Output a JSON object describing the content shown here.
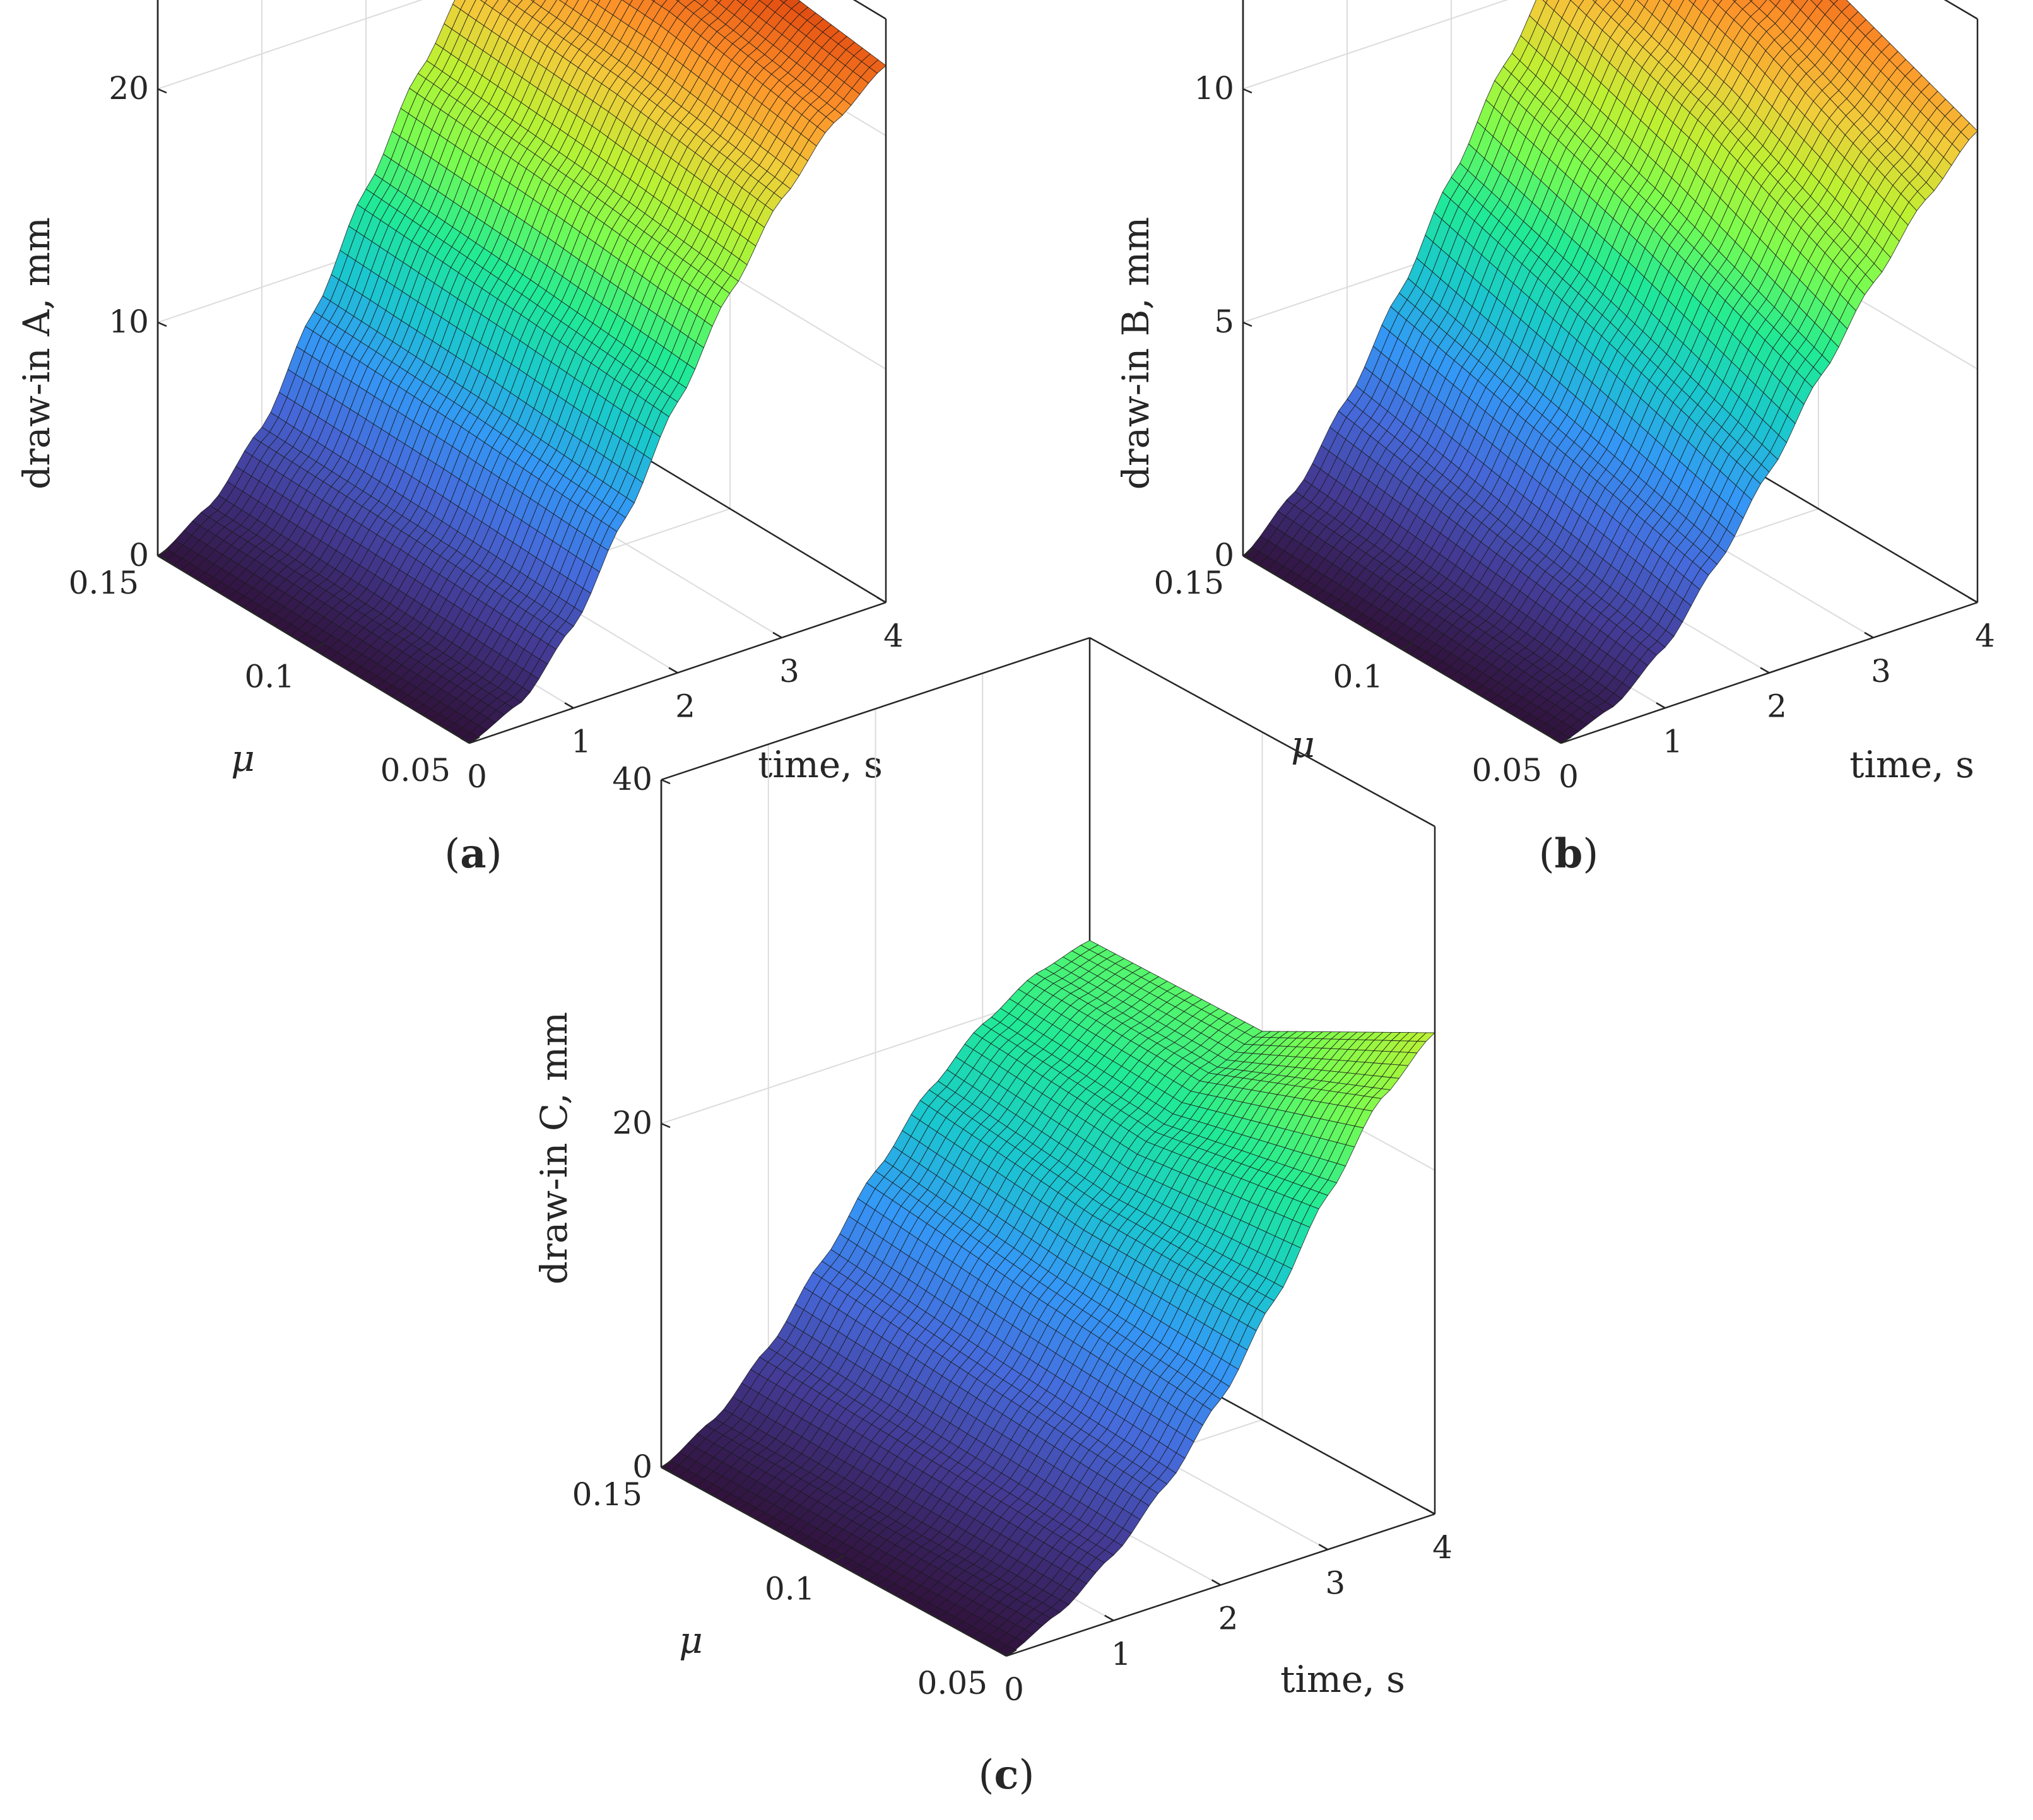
{
  "panels": [
    {
      "panel_label": "a",
      "zlabel": "draw-in A, mm",
      "xlabel": "time, s",
      "ylabel": "μ",
      "zticks": [
        "0",
        "10",
        "20"
      ],
      "xticks": [
        "0",
        "1",
        "2",
        "3",
        "4"
      ],
      "yticks": [
        "0.05",
        "0.1",
        "0.15"
      ]
    },
    {
      "panel_label": "b",
      "zlabel": "draw-in B, mm",
      "xlabel": "time, s",
      "ylabel": "μ",
      "zticks": [
        "0",
        "5",
        "10"
      ],
      "xticks": [
        "0",
        "1",
        "2",
        "3",
        "4"
      ],
      "yticks": [
        "0.05",
        "0.1",
        "0.15"
      ]
    },
    {
      "panel_label": "c",
      "zlabel": "draw-in C, mm",
      "xlabel": "time, s",
      "ylabel": "μ",
      "zticks": [
        "0",
        "20",
        "40"
      ],
      "xticks": [
        "0",
        "1",
        "2",
        "3",
        "4"
      ],
      "yticks": [
        "0.05",
        "0.1",
        "0.15"
      ]
    }
  ],
  "chart_data": [
    {
      "type": "surface",
      "xlabel": "time, s",
      "ylabel": "μ",
      "zlabel": "draw-in A, mm",
      "xlim": [
        0,
        4
      ],
      "ylim": [
        0.05,
        0.15
      ],
      "zlim": [
        0,
        25
      ],
      "grid": true,
      "colormap": "turbo",
      "x": [
        0,
        0.5,
        1,
        1.5,
        2,
        2.5,
        3,
        3.5,
        4
      ],
      "z_at_mu_0.05": [
        0,
        1.0,
        3.5,
        7.4,
        11.6,
        15.5,
        18.8,
        21.3,
        23.0
      ],
      "z_at_mu_0.10": [
        0,
        1.2,
        3.8,
        7.9,
        12.2,
        16.3,
        19.8,
        22.5,
        24.0
      ],
      "z_at_mu_0.15": [
        0,
        1.4,
        4.0,
        8.2,
        12.7,
        16.9,
        20.4,
        22.9,
        24.3
      ]
    },
    {
      "type": "surface",
      "xlabel": "time, s",
      "ylabel": "μ",
      "zlabel": "draw-in B, mm",
      "xlim": [
        0,
        4
      ],
      "ylim": [
        0.05,
        0.15
      ],
      "zlim": [
        0,
        12.5
      ],
      "grid": true,
      "colormap": "turbo",
      "x": [
        0,
        0.5,
        1,
        1.5,
        2,
        2.5,
        3,
        3.5,
        4
      ],
      "z_at_mu_0.05": [
        0,
        0.4,
        1.3,
        2.7,
        4.3,
        6.0,
        7.6,
        9.0,
        10.1
      ],
      "z_at_mu_0.10": [
        0,
        0.7,
        1.9,
        3.6,
        5.5,
        7.4,
        9.2,
        10.6,
        11.5
      ],
      "z_at_mu_0.15": [
        0,
        1.0,
        2.6,
        4.5,
        6.6,
        8.6,
        10.4,
        11.8,
        12.5
      ]
    },
    {
      "type": "surface",
      "xlabel": "time, s",
      "ylabel": "μ",
      "zlabel": "draw-in C, mm",
      "xlim": [
        0,
        4
      ],
      "ylim": [
        0.05,
        0.15
      ],
      "zlim": [
        0,
        40
      ],
      "grid": true,
      "colormap": "turbo",
      "x": [
        0,
        0.5,
        1,
        1.5,
        2,
        2.5,
        3,
        3.5,
        4
      ],
      "z_at_mu_0.05": [
        0,
        1.5,
        3.8,
        6.9,
        10.8,
        15.5,
        20.6,
        25.2,
        28.0
      ],
      "z_at_mu_0.10": [
        0,
        1.6,
        4.3,
        7.8,
        11.8,
        15.6,
        18.8,
        21.2,
        22.6
      ],
      "z_at_mu_0.15": [
        0,
        1.8,
        4.9,
        8.9,
        13.1,
        16.8,
        19.6,
        21.5,
        22.4
      ]
    }
  ]
}
